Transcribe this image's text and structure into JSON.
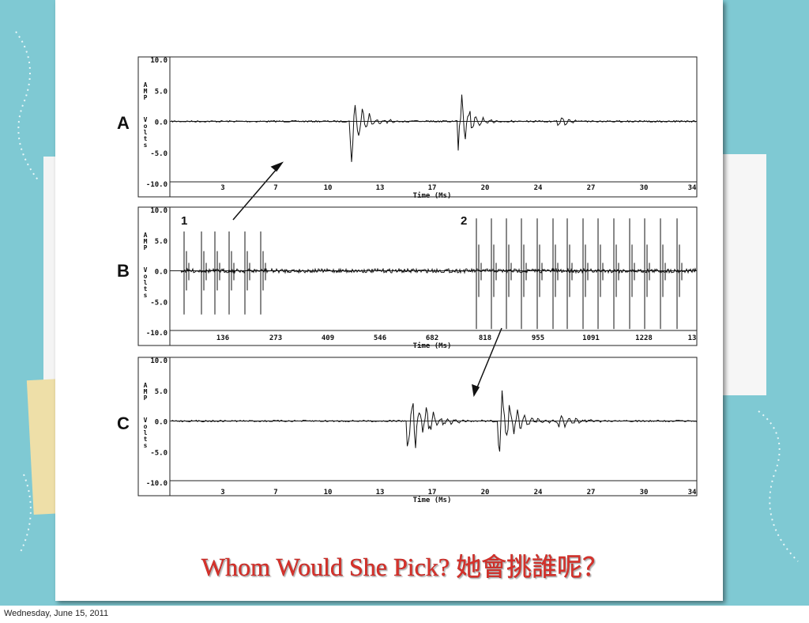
{
  "panels": [
    {
      "label": "A",
      "y_axis_title": [
        "AMP",
        "Volts"
      ],
      "yticks": [
        "10.0",
        "5.0",
        "0.0",
        "-5.0",
        "-10.0"
      ],
      "xticks": [
        "3",
        "7",
        "10",
        "13",
        "17",
        "20",
        "24",
        "27",
        "30",
        "34"
      ],
      "x_axis_title": "Time (Ms)"
    },
    {
      "label": "B",
      "y_axis_title": [
        "AMP",
        "Volts"
      ],
      "yticks": [
        "10.0",
        "5.0",
        "0.0",
        "-5.0",
        "-10.0"
      ],
      "xticks": [
        "136",
        "273",
        "409",
        "546",
        "682",
        "818",
        "955",
        "1091",
        "1228",
        "13"
      ],
      "x_axis_title": "Time (Ms)",
      "markers": [
        "1",
        "2"
      ]
    },
    {
      "label": "C",
      "y_axis_title": [
        "AMP",
        "Volts"
      ],
      "yticks": [
        "10.0",
        "5.0",
        "0.0",
        "-5.0",
        "-10.0"
      ],
      "xticks": [
        "3",
        "7",
        "10",
        "13",
        "17",
        "20",
        "24",
        "27",
        "30",
        "34"
      ],
      "x_axis_title": "Time (Ms)"
    }
  ],
  "title": "Whom Would She Pick? 她會挑誰呢？",
  "footer": "Wednesday, June 15, 2011"
}
